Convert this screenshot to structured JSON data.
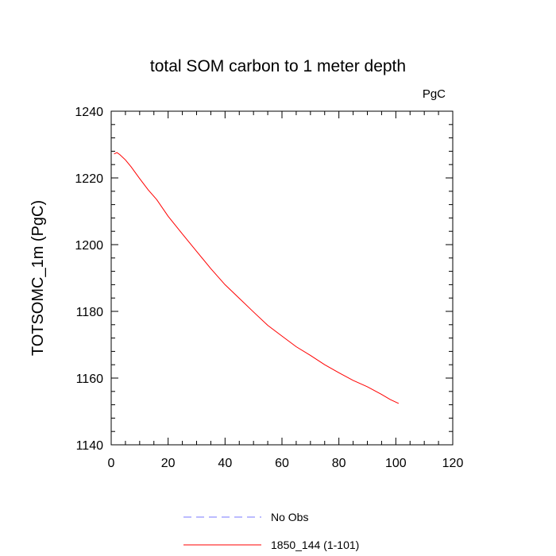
{
  "chart_data": {
    "type": "line",
    "title": "total SOM carbon to 1 meter depth",
    "units_label": "PgC",
    "xlabel": "",
    "ylabel": "TOTSOMC_1m  (PgC)",
    "xlim": [
      0,
      120
    ],
    "ylim": [
      1140,
      1240
    ],
    "x_ticks": [
      "0",
      "20",
      "40",
      "60",
      "80",
      "100",
      "120"
    ],
    "y_ticks": [
      "1140",
      "1160",
      "1180",
      "1200",
      "1220",
      "1240"
    ],
    "grid": false,
    "legend_position": "bottom",
    "series": [
      {
        "name": "No Obs",
        "color": "#7a7aff",
        "style": "dashed",
        "x": [],
        "y": []
      },
      {
        "name": "1850_144 (1-101)",
        "color": "#ff0000",
        "style": "solid",
        "x": [
          1,
          2,
          3,
          5,
          7,
          10,
          13,
          16,
          20,
          25,
          30,
          35,
          40,
          45,
          50,
          55,
          60,
          65,
          70,
          75,
          80,
          85,
          90,
          95,
          98,
          101
        ],
        "y": [
          1227.2,
          1227.6,
          1227.0,
          1225.4,
          1223.3,
          1219.8,
          1216.4,
          1213.5,
          1208.5,
          1203.2,
          1198.0,
          1192.8,
          1188.0,
          1183.9,
          1179.8,
          1175.8,
          1172.6,
          1169.4,
          1166.8,
          1164.0,
          1161.6,
          1159.3,
          1157.4,
          1155.1,
          1153.6,
          1152.4
        ]
      }
    ]
  }
}
